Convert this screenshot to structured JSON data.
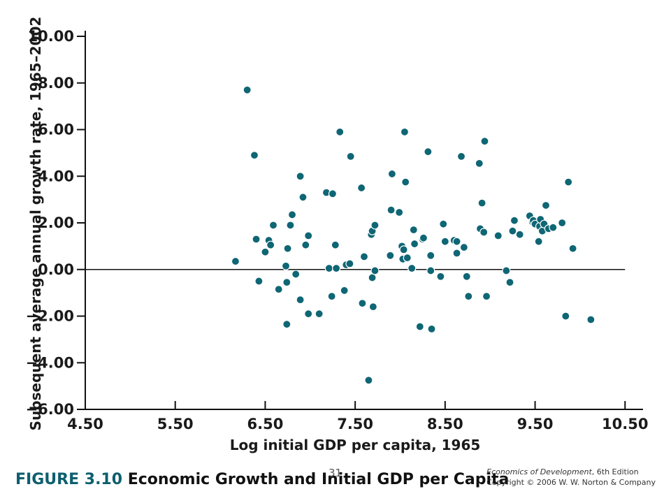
{
  "figure": {
    "label": "FIGURE 3.10",
    "title": "Economic Growth and Initial GDP per Capita",
    "page_number": "31",
    "book_title": "Economics of Development",
    "edition": ", 6th Edition",
    "copyright": "Copyright © 2006 W. W. Norton & Company"
  },
  "colors": {
    "point": "#0f6674",
    "axis": "#111111"
  },
  "chart_data": {
    "type": "scatter",
    "title": "",
    "xlabel": "Log initial GDP per capita, 1965",
    "ylabel": "Subsequent average annual growth rate, 1965–2002",
    "xlim": [
      4.5,
      10.7
    ],
    "ylim": [
      -6.0,
      10.0
    ],
    "xticks": [
      "4.50",
      "5.50",
      "6.50",
      "7.50",
      "8.50",
      "9.50",
      "10.50"
    ],
    "yticks": [
      "10.00",
      "8.00",
      "6.00",
      "4.00",
      "2.00",
      "0.00",
      "−2.00",
      "−4.00",
      "−6.00"
    ],
    "zero_line": true,
    "grid": false,
    "points": [
      [
        6.17,
        0.35
      ],
      [
        6.3,
        7.7
      ],
      [
        6.38,
        4.9
      ],
      [
        6.4,
        1.3
      ],
      [
        6.43,
        -0.5
      ],
      [
        6.5,
        0.75
      ],
      [
        6.54,
        1.25
      ],
      [
        6.56,
        1.05
      ],
      [
        6.59,
        1.9
      ],
      [
        6.65,
        -0.85
      ],
      [
        6.73,
        0.15
      ],
      [
        6.74,
        -0.55
      ],
      [
        6.74,
        -2.35
      ],
      [
        6.75,
        0.9
      ],
      [
        6.78,
        1.9
      ],
      [
        6.8,
        2.35
      ],
      [
        6.84,
        -0.2
      ],
      [
        6.89,
        4.0
      ],
      [
        6.89,
        -1.3
      ],
      [
        6.92,
        3.1
      ],
      [
        6.95,
        1.05
      ],
      [
        6.98,
        1.45
      ],
      [
        6.98,
        -1.9
      ],
      [
        7.1,
        -1.9
      ],
      [
        7.18,
        3.3
      ],
      [
        7.21,
        0.05
      ],
      [
        7.24,
        -1.15
      ],
      [
        7.25,
        3.25
      ],
      [
        7.28,
        1.05
      ],
      [
        7.29,
        0.05
      ],
      [
        7.33,
        5.9
      ],
      [
        7.38,
        -0.9
      ],
      [
        7.4,
        0.2
      ],
      [
        7.44,
        0.25
      ],
      [
        7.45,
        4.85
      ],
      [
        7.57,
        3.5
      ],
      [
        7.58,
        -1.45
      ],
      [
        7.6,
        0.55
      ],
      [
        7.65,
        -4.75
      ],
      [
        7.68,
        1.5
      ],
      [
        7.69,
        1.65
      ],
      [
        7.69,
        -0.35
      ],
      [
        7.7,
        -1.6
      ],
      [
        7.72,
        1.9
      ],
      [
        7.72,
        -0.05
      ],
      [
        7.89,
        0.6
      ],
      [
        7.9,
        2.55
      ],
      [
        7.91,
        4.1
      ],
      [
        7.99,
        2.45
      ],
      [
        8.02,
        1.0
      ],
      [
        8.03,
        0.45
      ],
      [
        8.04,
        0.85
      ],
      [
        8.05,
        5.9
      ],
      [
        8.06,
        3.75
      ],
      [
        8.08,
        0.5
      ],
      [
        8.13,
        0.05
      ],
      [
        8.15,
        1.7
      ],
      [
        8.16,
        1.1
      ],
      [
        8.22,
        -2.45
      ],
      [
        8.25,
        1.3
      ],
      [
        8.26,
        1.35
      ],
      [
        8.31,
        5.05
      ],
      [
        8.34,
        0.6
      ],
      [
        8.34,
        -0.05
      ],
      [
        8.35,
        -2.55
      ],
      [
        8.45,
        -0.3
      ],
      [
        8.48,
        1.95
      ],
      [
        8.5,
        1.2
      ],
      [
        8.6,
        1.25
      ],
      [
        8.63,
        0.7
      ],
      [
        8.63,
        1.2
      ],
      [
        8.68,
        4.85
      ],
      [
        8.71,
        0.95
      ],
      [
        8.74,
        -0.3
      ],
      [
        8.76,
        -1.15
      ],
      [
        8.88,
        4.55
      ],
      [
        8.89,
        1.75
      ],
      [
        8.91,
        2.85
      ],
      [
        8.93,
        1.6
      ],
      [
        8.94,
        5.5
      ],
      [
        8.96,
        -1.15
      ],
      [
        9.09,
        1.45
      ],
      [
        9.18,
        -0.05
      ],
      [
        9.22,
        -0.55
      ],
      [
        9.25,
        1.65
      ],
      [
        9.27,
        2.1
      ],
      [
        9.33,
        1.5
      ],
      [
        9.44,
        2.3
      ],
      [
        9.47,
        2.05
      ],
      [
        9.48,
        2.1
      ],
      [
        9.5,
        1.95
      ],
      [
        9.54,
        1.2
      ],
      [
        9.55,
        1.85
      ],
      [
        9.56,
        2.15
      ],
      [
        9.58,
        1.65
      ],
      [
        9.6,
        1.95
      ],
      [
        9.62,
        2.75
      ],
      [
        9.65,
        1.75
      ],
      [
        9.7,
        1.8
      ],
      [
        9.8,
        2.0
      ],
      [
        9.84,
        -2.0
      ],
      [
        9.87,
        3.75
      ],
      [
        9.92,
        0.9
      ],
      [
        10.12,
        -2.15
      ]
    ]
  }
}
